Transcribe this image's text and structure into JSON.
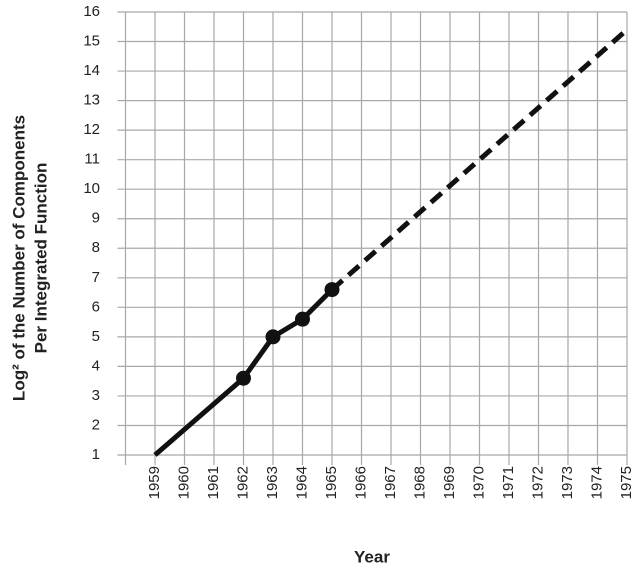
{
  "chart_data": {
    "type": "line",
    "x_label": "Year",
    "y_label": [
      "Log² of the Number of Components",
      "Per Integrated Function"
    ],
    "x": [
      1959,
      1962,
      1963,
      1964,
      1965,
      1975
    ],
    "series": [
      {
        "color": "#111111",
        "style": "solid",
        "markers": [
          false,
          true,
          true,
          true,
          true,
          false
        ],
        "values": [
          1,
          3.6,
          5,
          5.6,
          6.6,
          null
        ]
      },
      {
        "color": "#111111",
        "style": "dashed",
        "values": [
          null,
          null,
          null,
          null,
          6.6,
          15.4
        ]
      }
    ],
    "xlim": [
      1958,
      1975
    ],
    "xticks": [
      1959,
      1960,
      1961,
      1962,
      1963,
      1964,
      1965,
      1966,
      1967,
      1968,
      1969,
      1970,
      1971,
      1972,
      1973,
      1974,
      1975
    ],
    "ylim": [
      1,
      16
    ],
    "yticks": [
      1,
      2,
      3,
      4,
      5,
      6,
      7,
      8,
      9,
      10,
      11,
      12,
      13,
      14,
      15,
      16
    ],
    "grid": true
  }
}
